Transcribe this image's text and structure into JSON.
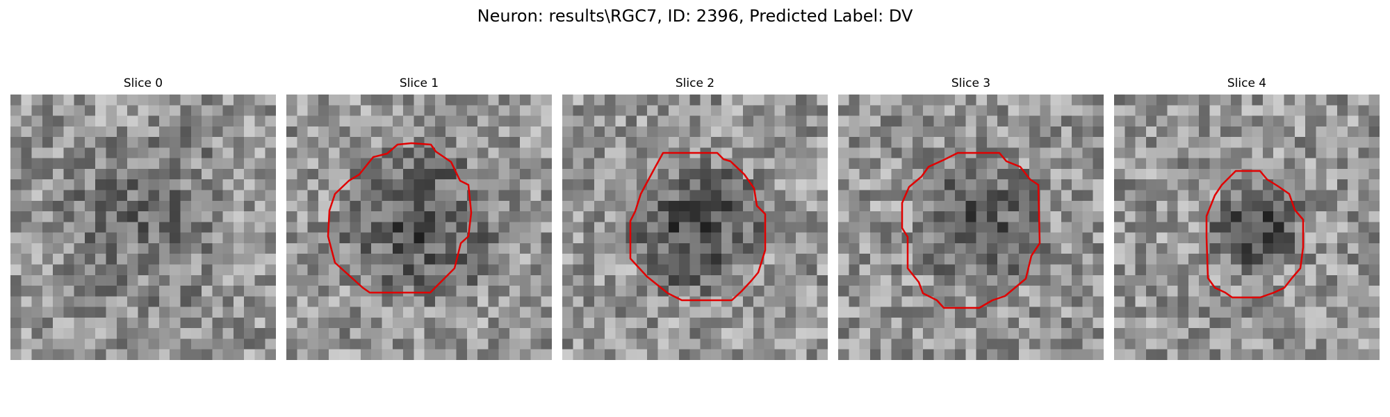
{
  "figure": {
    "title": "Neuron: results\\RGC7, ID: 2396, Predicted Label: DV"
  },
  "panels": [
    {
      "title": "Slice 0",
      "contour": false
    },
    {
      "title": "Slice 1",
      "contour": true
    },
    {
      "title": "Slice 2",
      "contour": true
    },
    {
      "title": "Slice 3",
      "contour": true
    },
    {
      "title": "Slice 4",
      "contour": true
    }
  ],
  "colors": {
    "contour": "#e00000",
    "colormap": "grayscale"
  }
}
